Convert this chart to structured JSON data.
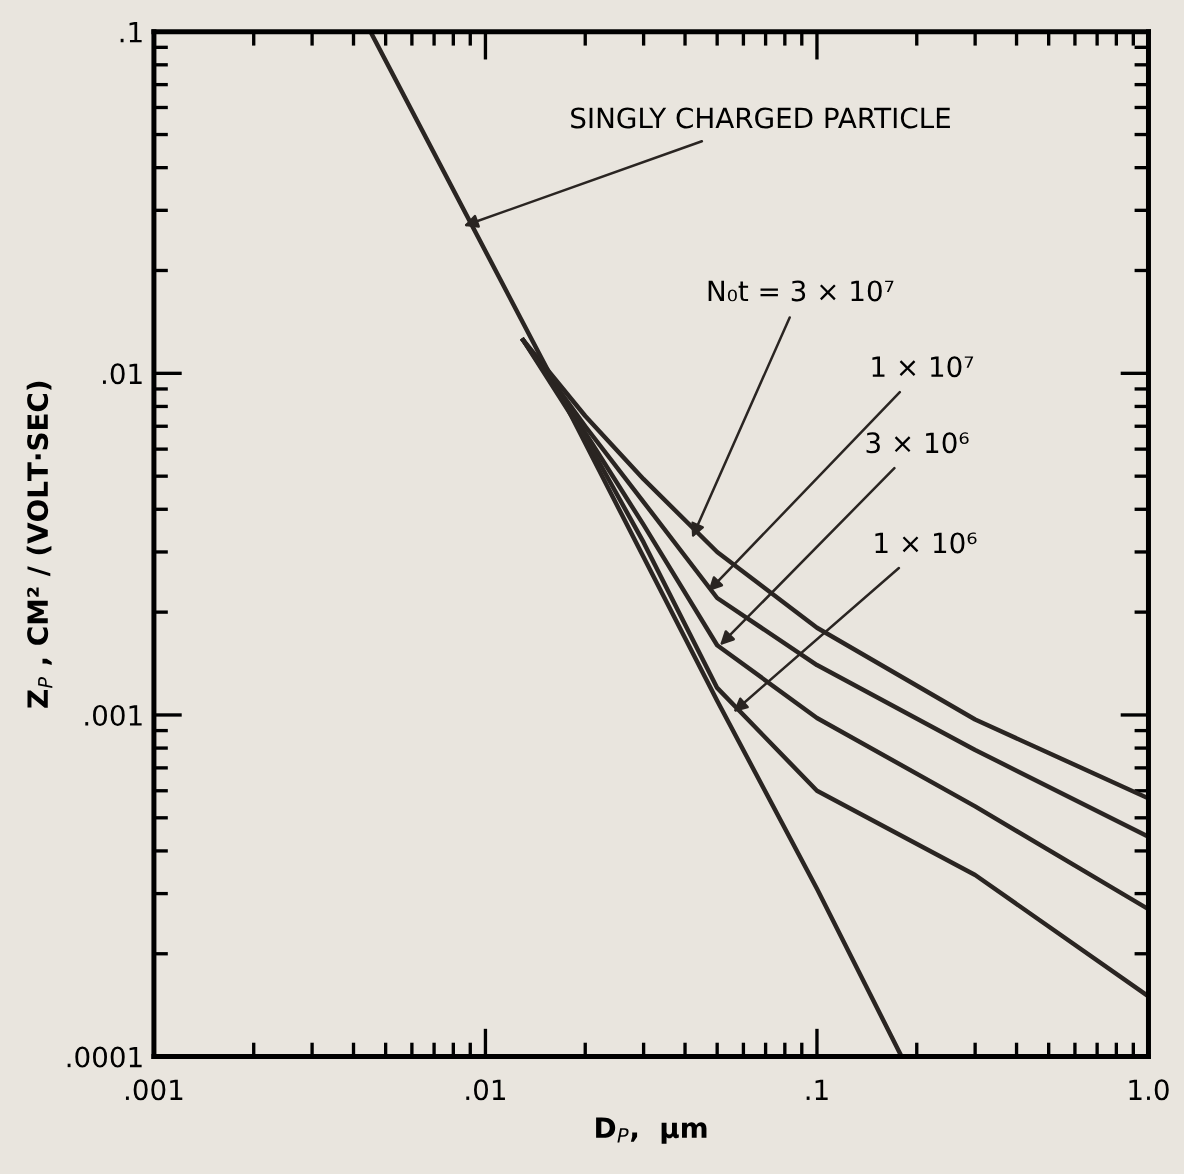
{
  "chart_data": {
    "type": "line",
    "xlabel": "D$_{P}$,  μm",
    "ylabel": "Z$_{P}$ , CM² / (VOLT·SEC)",
    "log": "xy",
    "xlim": [
      0.001,
      1.0
    ],
    "ylim": [
      0.0001,
      0.1
    ],
    "xticks": [
      {
        "value": 0.001,
        "label": ".001"
      },
      {
        "value": 0.01,
        "label": ".01"
      },
      {
        "value": 0.1,
        "label": ".1"
      },
      {
        "value": 1.0,
        "label": "1.0"
      }
    ],
    "yticks": [
      {
        "value": 0.0001,
        "label": ".0001"
      },
      {
        "value": 0.001,
        "label": ".001"
      },
      {
        "value": 0.01,
        "label": ".01"
      },
      {
        "value": 0.1,
        "label": ".1"
      }
    ],
    "grid": false,
    "series": [
      {
        "color": "#2a2522",
        "x": [
          0.0045,
          0.0156,
          0.05,
          0.1,
          0.18
        ],
        "values": [
          0.1,
          0.01,
          0.0011,
          0.00031,
          0.0001
        ]
      },
      {
        "color": "#2a2522",
        "x": [
          0.013,
          0.02,
          0.03,
          0.05,
          0.1,
          0.3,
          1.0
        ],
        "values": [
          0.0125,
          0.0075,
          0.0049,
          0.003,
          0.0018,
          0.00097,
          0.00057
        ]
      },
      {
        "color": "#2a2522",
        "x": [
          0.013,
          0.02,
          0.03,
          0.05,
          0.1,
          0.3,
          1.0
        ],
        "values": [
          0.0125,
          0.007,
          0.0042,
          0.0022,
          0.0014,
          0.00079,
          0.00044
        ]
      },
      {
        "color": "#2a2522",
        "x": [
          0.013,
          0.02,
          0.03,
          0.05,
          0.1,
          0.3,
          1.0
        ],
        "values": [
          0.0125,
          0.0067,
          0.0036,
          0.0016,
          0.00098,
          0.00054,
          0.00027
        ]
      },
      {
        "color": "#2a2522",
        "x": [
          0.013,
          0.02,
          0.03,
          0.05,
          0.1,
          0.3,
          1.0
        ],
        "values": [
          0.0125,
          0.0065,
          0.0032,
          0.0012,
          0.0006,
          0.00034,
          0.00015
        ]
      }
    ],
    "annotations": [
      {
        "text": "SINGLY CHARGED PARTICLE",
        "x": 0.0086,
        "y": 0.027
      },
      {
        "text": "N₀t = 3 × 10⁷",
        "x": 0.042,
        "y": 0.0033
      },
      {
        "text": "1 × 10⁷",
        "x": 0.047,
        "y": 0.0023
      },
      {
        "text": "3 × 10⁶",
        "x": 0.051,
        "y": 0.0016
      },
      {
        "text": "1 × 10⁶",
        "x": 0.056,
        "y": 0.00102
      }
    ]
  }
}
